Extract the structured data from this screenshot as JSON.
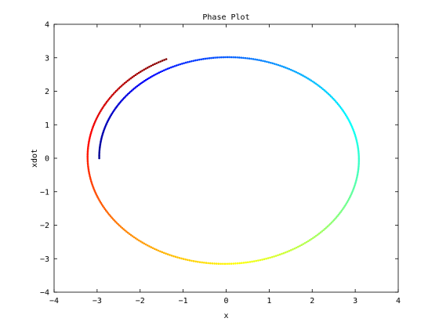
{
  "chart_data": {
    "type": "scatter",
    "title": "Phase Plot",
    "xlabel": "x",
    "ylabel": "xdot",
    "xlim": [
      -4,
      4
    ],
    "ylim": [
      -4,
      4
    ],
    "xticks": [
      "−4",
      "−3",
      "−2",
      "−1",
      "0",
      "1",
      "2",
      "3",
      "4"
    ],
    "yticks": [
      "−4",
      "−3",
      "−2",
      "−1",
      "0",
      "1",
      "2",
      "3",
      "4"
    ],
    "grid": false,
    "colormap": "jet",
    "trajectory": {
      "start": [
        -2.95,
        0.0
      ],
      "end": [
        -1.35,
        3.0
      ],
      "radius_start": 2.95,
      "radius_end": 3.27,
      "revolutions": 1.18,
      "points": 480
    },
    "colors": [
      "#00008f",
      "#0000ff",
      "#0080ff",
      "#00ffff",
      "#80ff80",
      "#ffff00",
      "#ff8000",
      "#ff0000",
      "#800000"
    ]
  }
}
